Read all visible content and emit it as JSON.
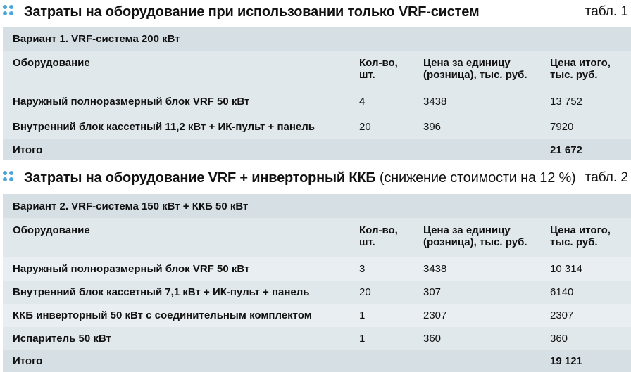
{
  "table1": {
    "title": "Затраты на оборудование при использовании только VRF-систем",
    "tabl": "табл. 1",
    "variant": "Вариант 1. VRF-система 200 кВт",
    "headers": {
      "equipment": "Оборудование",
      "qty_1": "Кол-во,",
      "qty_2": "шт.",
      "price_1": "Цена за единицу",
      "price_2": "(розница), тыс. руб.",
      "total_1": "Цена итого,",
      "total_2": "тыс. руб."
    },
    "rows": [
      {
        "name": "Наружный полноразмерный блок VRF 50 кВт",
        "qty": "4",
        "price": "3438",
        "total": "13 752"
      },
      {
        "name": "Внутренний блок кассетный 11,2 кВт + ИК-пульт + панель",
        "qty": "20",
        "price": "396",
        "total": "7920"
      }
    ],
    "total_label": "Итого",
    "total_value": "21 672"
  },
  "table2": {
    "title_bold": "Затраты на оборудование VRF + инверторный ККБ",
    "title_normal": " (снижение стоимости на 12 %)",
    "tabl": "табл. 2",
    "variant": "Вариант 2. VRF-система 150 кВт + ККБ 50 кВт",
    "headers": {
      "equipment": "Оборудование",
      "qty_1": "Кол-во,",
      "qty_2": "шт.",
      "price_1": "Цена за единицу",
      "price_2": "(розница), тыс. руб.",
      "total_1": "Цена итого,",
      "total_2": "тыс. руб."
    },
    "rows": [
      {
        "name": "Наружный полноразмерный блок VRF 50 кВт",
        "qty": "3",
        "price": "3438",
        "total": "10 314"
      },
      {
        "name": "Внутренний блок кассетный 7,1 кВт + ИК-пульт + панель",
        "qty": "20",
        "price": "307",
        "total": "6140"
      },
      {
        "name": "ККБ инверторный 50 кВт с соединительным комплектом",
        "qty": "1",
        "price": "2307",
        "total": "2307"
      },
      {
        "name": "Испаритель 50 кВт",
        "qty": "1",
        "price": "360",
        "total": "360"
      }
    ],
    "total_label": "Итого",
    "total_value": "19 121"
  }
}
